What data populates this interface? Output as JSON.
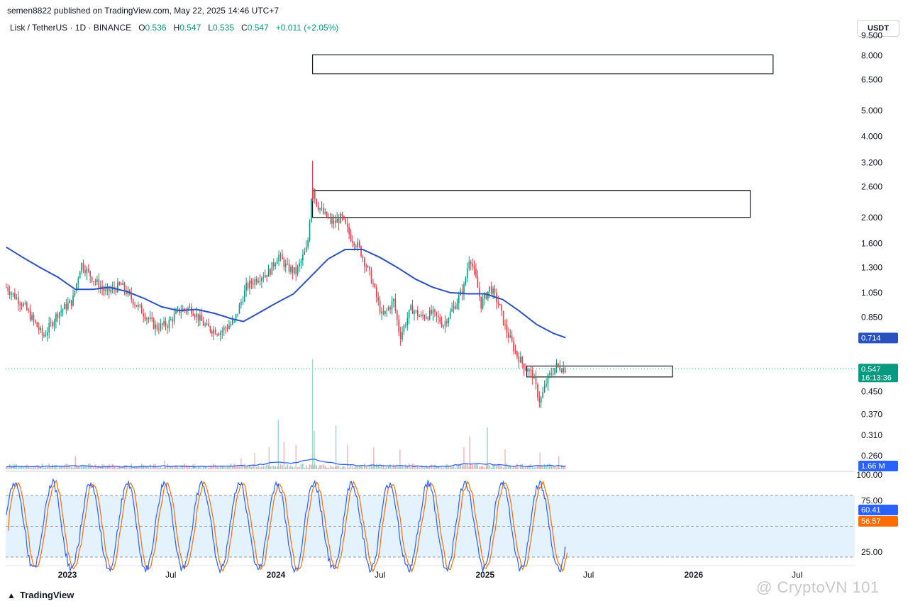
{
  "header": {
    "publisher_line": "semen8822 published on TradingView.com, May 22, 2025 14:46 UTC+7"
  },
  "legend": {
    "symbol": "Lisk / TetherUS · 1D · BINANCE",
    "o_label": "O",
    "o_value": "0.536",
    "h_label": "H",
    "h_value": "0.547",
    "l_label": "L",
    "l_value": "0.535",
    "c_label": "C",
    "c_value": "0.547",
    "change": "+0.011 (+2.05%)"
  },
  "currency_button": "USDT",
  "footer": {
    "logo": "TradingView"
  },
  "watermark": "@ CryptoVN 101",
  "colors": {
    "up": "#089981",
    "down": "#f23645",
    "ma": "#2a52be",
    "volume_ma": "#2962ff",
    "stoch_k": "#2962ff",
    "stoch_d": "#ff6d00",
    "band_fill": "#e3f2fd"
  },
  "chart_data": [
    {
      "type": "candlestick",
      "title": "Lisk / TetherUS · 1D · BINANCE",
      "scale": "log",
      "ylim": [
        0.23,
        9.8
      ],
      "y_ticks": [
        "9.500",
        "8.000",
        "6.500",
        "5.000",
        "4.000",
        "3.200",
        "2.600",
        "2.000",
        "1.600",
        "1.300",
        "1.050",
        "0.850",
        "0.450",
        "0.370",
        "0.310",
        "0.260"
      ],
      "x_ticks": [
        "2023",
        "Jul",
        "2024",
        "Jul",
        "2025",
        "Jul",
        "2026",
        "Jul"
      ],
      "x_tick_dates": [
        "2023-01-01",
        "2023-07-01",
        "2024-01-01",
        "2024-07-01",
        "2025-01-01",
        "2025-07-01",
        "2026-01-01",
        "2026-07-01"
      ],
      "x_range": [
        "2022-09-15",
        "2026-10-10"
      ],
      "price_path": [
        [
          "2022-09-16",
          1.1
        ],
        [
          "2022-10-15",
          0.95
        ],
        [
          "2022-11-10",
          0.78
        ],
        [
          "2022-11-20",
          0.72
        ],
        [
          "2022-12-15",
          0.88
        ],
        [
          "2023-01-10",
          0.98
        ],
        [
          "2023-01-25",
          1.35
        ],
        [
          "2023-02-15",
          1.18
        ],
        [
          "2023-03-10",
          1.05
        ],
        [
          "2023-04-05",
          1.12
        ],
        [
          "2023-05-01",
          0.95
        ],
        [
          "2023-06-05",
          0.78
        ],
        [
          "2023-06-25",
          0.8
        ],
        [
          "2023-07-15",
          0.9
        ],
        [
          "2023-08-05",
          0.92
        ],
        [
          "2023-09-01",
          0.78
        ],
        [
          "2023-09-25",
          0.75
        ],
        [
          "2023-10-20",
          0.82
        ],
        [
          "2023-11-10",
          1.1
        ],
        [
          "2023-12-01",
          1.2
        ],
        [
          "2023-12-20",
          1.25
        ],
        [
          "2024-01-05",
          1.45
        ],
        [
          "2024-01-20",
          1.3
        ],
        [
          "2024-02-05",
          1.25
        ],
        [
          "2024-02-25",
          1.55
        ],
        [
          "2024-03-05",
          2.7
        ],
        [
          "2024-03-10",
          2.3
        ],
        [
          "2024-03-25",
          2.05
        ],
        [
          "2024-04-10",
          1.9
        ],
        [
          "2024-04-25",
          2.0
        ],
        [
          "2024-05-10",
          1.7
        ],
        [
          "2024-05-25",
          1.55
        ],
        [
          "2024-06-15",
          1.2
        ],
        [
          "2024-07-05",
          0.85
        ],
        [
          "2024-07-25",
          0.98
        ],
        [
          "2024-08-05",
          0.72
        ],
        [
          "2024-08-25",
          0.92
        ],
        [
          "2024-09-10",
          0.85
        ],
        [
          "2024-10-01",
          0.88
        ],
        [
          "2024-10-20",
          0.8
        ],
        [
          "2024-11-10",
          0.95
        ],
        [
          "2024-11-25",
          1.1
        ],
        [
          "2024-12-05",
          1.45
        ],
        [
          "2024-12-15",
          1.2
        ],
        [
          "2024-12-25",
          0.95
        ],
        [
          "2025-01-10",
          1.1
        ],
        [
          "2025-01-25",
          0.95
        ],
        [
          "2025-02-05",
          0.78
        ],
        [
          "2025-02-25",
          0.62
        ],
        [
          "2025-03-10",
          0.56
        ],
        [
          "2025-03-25",
          0.52
        ],
        [
          "2025-04-07",
          0.41
        ],
        [
          "2025-04-20",
          0.5
        ],
        [
          "2025-05-05",
          0.56
        ],
        [
          "2025-05-22",
          0.547
        ]
      ],
      "ma_path": [
        [
          "2022-09-16",
          1.55
        ],
        [
          "2022-10-15",
          1.42
        ],
        [
          "2022-11-15",
          1.3
        ],
        [
          "2022-12-15",
          1.2
        ],
        [
          "2023-01-15",
          1.08
        ],
        [
          "2023-02-15",
          1.08
        ],
        [
          "2023-03-15",
          1.1
        ],
        [
          "2023-04-15",
          1.06
        ],
        [
          "2023-05-15",
          1.0
        ],
        [
          "2023-06-15",
          0.93
        ],
        [
          "2023-07-15",
          0.9
        ],
        [
          "2023-08-15",
          0.91
        ],
        [
          "2023-09-15",
          0.88
        ],
        [
          "2023-10-15",
          0.84
        ],
        [
          "2023-11-05",
          0.82
        ],
        [
          "2023-12-01",
          0.88
        ],
        [
          "2024-01-01",
          0.96
        ],
        [
          "2024-02-01",
          1.04
        ],
        [
          "2024-03-01",
          1.2
        ],
        [
          "2024-04-01",
          1.4
        ],
        [
          "2024-05-01",
          1.52
        ],
        [
          "2024-06-01",
          1.52
        ],
        [
          "2024-07-01",
          1.42
        ],
        [
          "2024-08-01",
          1.3
        ],
        [
          "2024-09-01",
          1.18
        ],
        [
          "2024-10-01",
          1.1
        ],
        [
          "2024-11-01",
          1.05
        ],
        [
          "2024-12-01",
          1.04
        ],
        [
          "2025-01-01",
          1.04
        ],
        [
          "2025-02-01",
          0.99
        ],
        [
          "2025-03-01",
          0.9
        ],
        [
          "2025-04-01",
          0.8
        ],
        [
          "2025-05-01",
          0.74
        ],
        [
          "2025-05-22",
          0.714
        ]
      ],
      "zones": [
        {
          "from": "2024-03-05",
          "to": "2026-05-20",
          "low": 6.85,
          "high": 8.05
        },
        {
          "from": "2024-03-05",
          "to": "2026-04-10",
          "low": 2.0,
          "high": 2.52
        },
        {
          "from": "2025-03-15",
          "to": "2025-11-25",
          "low": 0.51,
          "high": 0.56
        }
      ],
      "last_price": {
        "value": "0.547",
        "countdown": "16:13:36"
      },
      "ma_value": "0.714"
    },
    {
      "type": "bar",
      "name": "Volume",
      "ma_value": "1.66 M",
      "spikes": [
        [
          "2023-01-15",
          0.12
        ],
        [
          "2023-06-20",
          0.08
        ],
        [
          "2023-11-01",
          0.1
        ],
        [
          "2023-11-25",
          0.15
        ],
        [
          "2023-12-20",
          0.2
        ],
        [
          "2024-01-05",
          0.45
        ],
        [
          "2024-01-15",
          0.25
        ],
        [
          "2024-02-05",
          0.22
        ],
        [
          "2024-03-05",
          1.0
        ],
        [
          "2024-03-08",
          0.35
        ],
        [
          "2024-04-15",
          0.4
        ],
        [
          "2024-05-05",
          0.22
        ],
        [
          "2024-06-20",
          0.2
        ],
        [
          "2024-08-05",
          0.18
        ],
        [
          "2024-11-25",
          0.2
        ],
        [
          "2024-12-05",
          0.3
        ],
        [
          "2025-01-05",
          0.38
        ],
        [
          "2025-02-05",
          0.18
        ],
        [
          "2025-04-07",
          0.15
        ],
        [
          "2025-05-10",
          0.12
        ]
      ]
    },
    {
      "type": "line",
      "name": "Stoch RSI",
      "ylim": [
        0,
        100
      ],
      "y_ticks": [
        "100.00",
        "75.00",
        "25.00"
      ],
      "bands": [
        80,
        50,
        20
      ],
      "last_values": {
        "k": "60.41",
        "d": "56.57"
      }
    }
  ]
}
